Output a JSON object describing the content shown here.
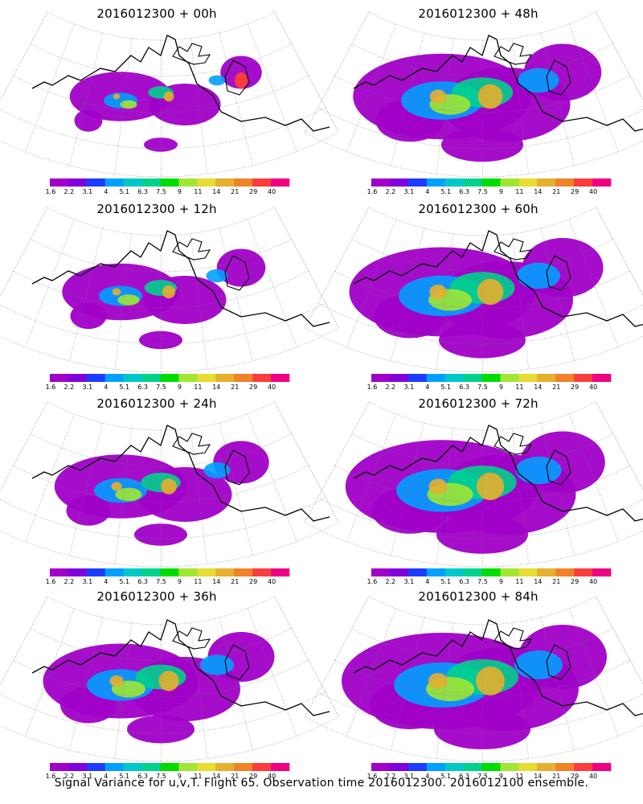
{
  "panels": [
    {
      "title": "2016012300 + 00h"
    },
    {
      "title": "2016012300 + 48h"
    },
    {
      "title": "2016012300 + 12h"
    },
    {
      "title": "2016012300 + 60h"
    },
    {
      "title": "2016012300 + 24h"
    },
    {
      "title": "2016012300 + 72h"
    },
    {
      "title": "2016012300 + 36h"
    },
    {
      "title": "2016012300 + 84h"
    }
  ],
  "colorbar": {
    "levels": [
      "1.6",
      "2.2",
      "3.1",
      "4",
      "5.1",
      "6.3",
      "7.5",
      "9",
      "11",
      "14",
      "21",
      "29",
      "40"
    ],
    "colors": [
      "#a000c8",
      "#8200dc",
      "#1e3cff",
      "#00a0ff",
      "#00c8c8",
      "#00d28c",
      "#00dc00",
      "#a0e632",
      "#e6dc32",
      "#e6af2d",
      "#f08228",
      "#fa3c3c",
      "#f00082"
    ]
  },
  "caption": "Signal Variance for u,v,T. Flight 65. Observation time 2016012300. 2016012100 ensemble."
}
